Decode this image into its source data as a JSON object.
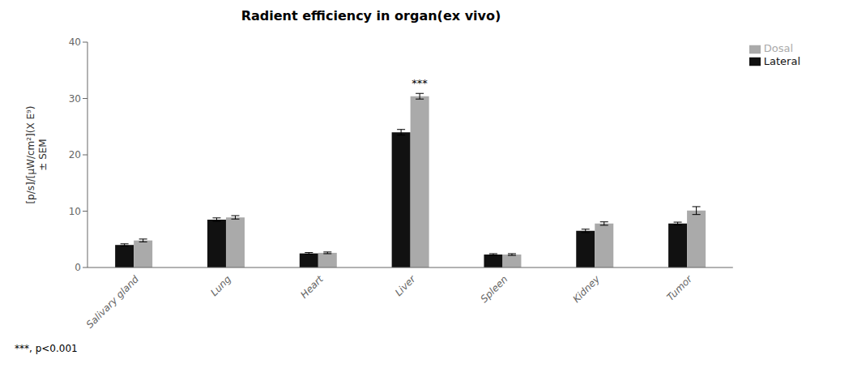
{
  "chart_data": {
    "type": "bar",
    "title": "Radient efficiency in organ(ex vivo)",
    "categories": [
      "Salivary gland",
      "Lung",
      "Heart",
      "Liver",
      "Spleen",
      "Kidney",
      "Tumor"
    ],
    "series": [
      {
        "name": "Lateral",
        "color": "#111111",
        "values": [
          4.0,
          8.5,
          2.5,
          24.0,
          2.3,
          6.5,
          7.8
        ],
        "errors": [
          0.2,
          0.3,
          0.15,
          0.5,
          0.15,
          0.3,
          0.25
        ]
      },
      {
        "name": "Dosal",
        "color": "#aaaaaa",
        "values": [
          4.8,
          8.9,
          2.6,
          30.4,
          2.3,
          7.8,
          10.1
        ],
        "errors": [
          0.25,
          0.3,
          0.15,
          0.5,
          0.15,
          0.3,
          0.7
        ]
      }
    ],
    "ylabel": "[p/s]/[μW/cm²](X E⁹)\n± SEM",
    "ylim": [
      0,
      40
    ],
    "yticks": [
      0,
      10,
      20,
      30,
      40
    ],
    "annotations": [
      {
        "text": "***",
        "category": "Liver",
        "series": "Dosal"
      }
    ],
    "footnote": "***, p<0.001",
    "legend": "upper right",
    "grid": false
  }
}
